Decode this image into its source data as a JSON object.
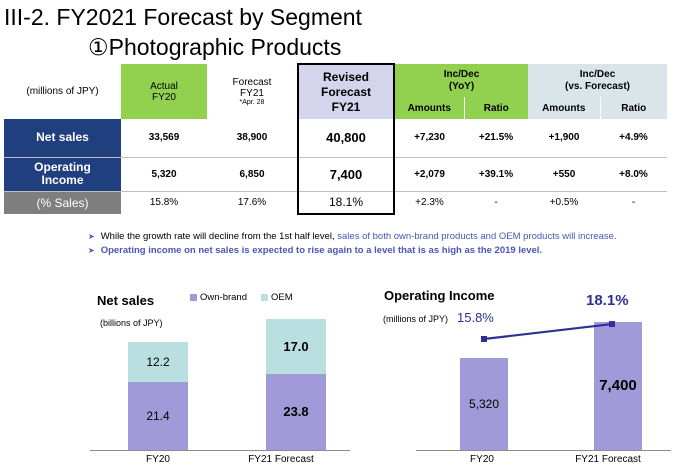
{
  "title": "III-2. FY2021 Forecast by Segment",
  "subtitle": "①Photographic Products",
  "table": {
    "unit": "(millions of JPY)",
    "col_actual": [
      "Actual",
      "FY20"
    ],
    "col_forecast": [
      "Forecast",
      "FY21",
      "*Apr. 28"
    ],
    "col_revised": [
      "Revised",
      "Forecast",
      "FY21"
    ],
    "col_yoy": [
      "Inc/Dec",
      "(YoY)"
    ],
    "col_vs": [
      "Inc/Dec",
      "(vs. Forecast)"
    ],
    "sub_amounts": "Amounts",
    "sub_ratio": "Ratio",
    "rows": [
      {
        "label": "Net sales",
        "actual": "33,569",
        "forecast": "38,900",
        "revised": "40,800",
        "yoy_amt": "+7,230",
        "yoy_ratio": "+21.5%",
        "vs_amt": "+1,900",
        "vs_ratio": "+4.9%"
      },
      {
        "label": [
          "Operating",
          "Income"
        ],
        "actual": "5,320",
        "forecast": "6,850",
        "revised": "7,400",
        "yoy_amt": "+2,079",
        "yoy_ratio": "+39.1%",
        "vs_amt": "+550",
        "vs_ratio": "+8.0%"
      },
      {
        "label": "(% Sales)",
        "actual": "15.8%",
        "forecast": "17.6%",
        "revised": "18.1%",
        "yoy_amt": "+2.3%",
        "yoy_ratio": "-",
        "vs_amt": "+0.5%",
        "vs_ratio": "-"
      }
    ]
  },
  "bullets": [
    {
      "plain": "While the growth rate will decline from the 1st half level, ",
      "highlight": "sales of both own-brand products and OEM products will increase."
    },
    {
      "plain": "",
      "highlight": "Operating income on net sales is expected to rise again to a level that is as high as the 2019 level."
    }
  ],
  "colors": {
    "green": "#92d050",
    "teal": "#dae5ea",
    "navy": "#1f3f7f",
    "grey": "#7f7f7f",
    "lavender": "#d4d4ec",
    "bar": "#a19ad8",
    "oem": "#b9dfe1",
    "accent": "#4a55b8",
    "line": "#2e3192"
  },
  "chart_data": [
    {
      "type": "bar",
      "title": "Net sales",
      "unit": "(billions of JPY)",
      "stacked": true,
      "categories": [
        "FY20",
        "FY21 Forecast"
      ],
      "series": [
        {
          "name": "Own-brand",
          "values": [
            21.4,
            23.8
          ]
        },
        {
          "name": "OEM",
          "values": [
            12.2,
            17.0
          ]
        }
      ],
      "value_labels": {
        "own": [
          "21.4",
          "23.8"
        ],
        "oem": [
          "12.2",
          "17.0"
        ]
      },
      "legend": "top"
    },
    {
      "type": "bar",
      "title": "Operating Income",
      "unit": "(millions of JPY)",
      "categories": [
        "FY20",
        "FY21 Forecast"
      ],
      "values": [
        5320,
        7400
      ],
      "value_labels": [
        "5,320",
        "7,400"
      ],
      "overlay_line": {
        "values": [
          15.8,
          18.1
        ],
        "labels": [
          "15.8%",
          "18.1%"
        ]
      }
    }
  ]
}
